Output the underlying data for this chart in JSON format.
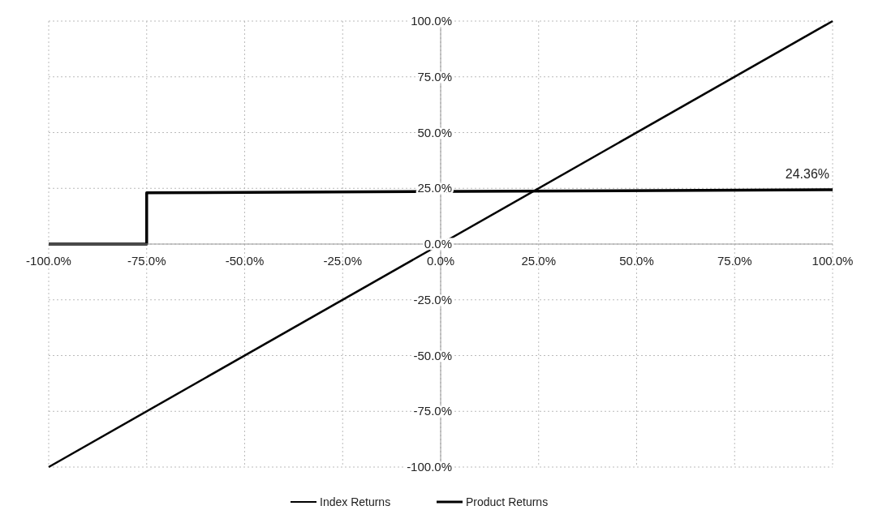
{
  "chart_data": {
    "type": "line",
    "xlim": [
      -100,
      100
    ],
    "ylim": [
      -100,
      100
    ],
    "xticks": [
      {
        "value": -100,
        "label": "-100.0%"
      },
      {
        "value": -75,
        "label": "-75.0%"
      },
      {
        "value": -50,
        "label": "-50.0%"
      },
      {
        "value": -25,
        "label": "-25.0%"
      },
      {
        "value": 0,
        "label": "0.0%"
      },
      {
        "value": 25,
        "label": "25.0%"
      },
      {
        "value": 50,
        "label": "50.0%"
      },
      {
        "value": 75,
        "label": "75.0%"
      },
      {
        "value": 100,
        "label": "100.0%"
      }
    ],
    "yticks": [
      {
        "value": -100,
        "label": "-100.0%"
      },
      {
        "value": -75,
        "label": "-75.0%"
      },
      {
        "value": -50,
        "label": "-50.0%"
      },
      {
        "value": -25,
        "label": "-25.0%"
      },
      {
        "value": 0,
        "label": "0.0%"
      },
      {
        "value": 25,
        "label": "25.0%"
      },
      {
        "value": 50,
        "label": "50.0%"
      },
      {
        "value": 75,
        "label": "75.0%"
      },
      {
        "value": 100,
        "label": "100.0%"
      }
    ],
    "grid": true,
    "legend": "bottom",
    "marker": "none",
    "line_style": "solid",
    "series": [
      {
        "name": "Index Returns",
        "color": "#000000",
        "x": [
          -100,
          100
        ],
        "values": [
          -100,
          100
        ]
      },
      {
        "name": "Product Returns",
        "color": "#000000",
        "x": [
          -100,
          -75,
          -75,
          100
        ],
        "values": [
          0,
          0,
          23,
          24.36
        ]
      }
    ],
    "annotations": [
      {
        "text": "24.36%",
        "x": 100,
        "y": 24.36
      }
    ]
  }
}
